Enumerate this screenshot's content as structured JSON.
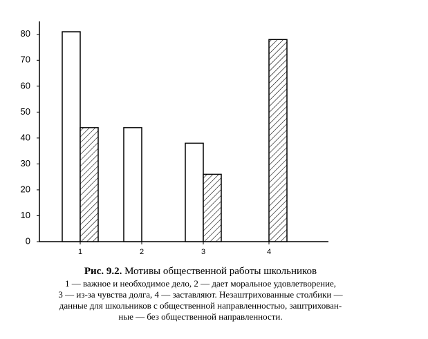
{
  "chart_data": {
    "type": "bar",
    "categories": [
      "1",
      "2",
      "3",
      "4"
    ],
    "series": [
      {
        "color": "#ffffff",
        "values": [
          81,
          44,
          38,
          null
        ]
      },
      {
        "color": "hatched",
        "values": [
          44,
          null,
          26,
          78
        ]
      }
    ],
    "ylim": [
      0,
      85
    ],
    "yticks": [
      0,
      10,
      20,
      30,
      40,
      50,
      60,
      70,
      80
    ],
    "caption": {
      "label": "Рис. 9.2.",
      "title": "Мотивы общественной работы школьников",
      "lines": [
        "1 — важное и необходимое дело, 2 —  дает моральное удовлетворение,",
        "3 — из-за чувства долга, 4 — заставляют. Незаштрихованные столбики —",
        "данные для школьников с общественной направленностью, заштрихован-",
        "ные — без общественной направленности."
      ]
    }
  }
}
